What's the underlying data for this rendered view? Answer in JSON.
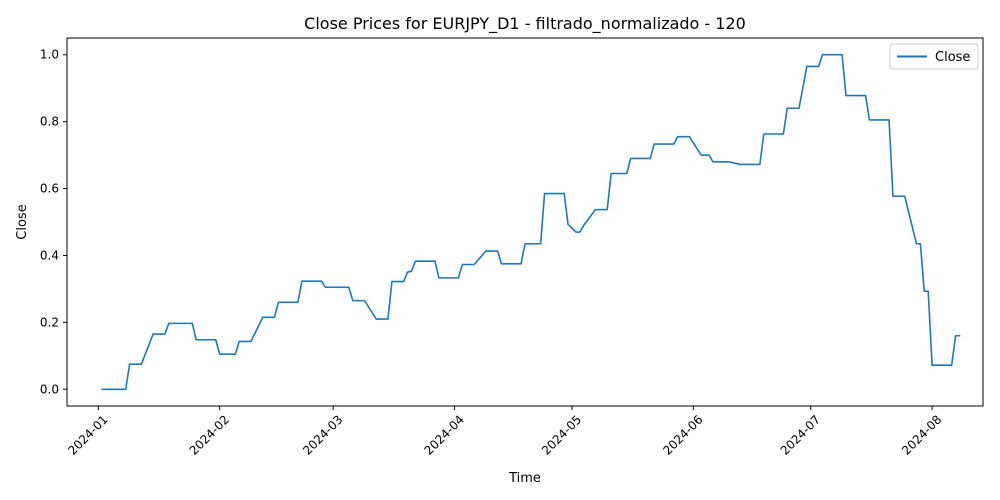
{
  "chart_data": {
    "type": "line",
    "title": "Close Prices for EURJPY_D1 - filtrado_normalizado - 120",
    "xlabel": "Time",
    "ylabel": "Close",
    "xlim": [
      "2023-12-24",
      "2024-08-14"
    ],
    "ylim": [
      -0.05,
      1.05
    ],
    "x_ticks": [
      "2024-01-01",
      "2024-02-01",
      "2024-03-01",
      "2024-04-01",
      "2024-05-01",
      "2024-06-01",
      "2024-07-01",
      "2024-08-01"
    ],
    "x_tick_labels": [
      "2024-01",
      "2024-02",
      "2024-03",
      "2024-04",
      "2024-05",
      "2024-06",
      "2024-07",
      "2024-08"
    ],
    "y_ticks": [
      0.0,
      0.2,
      0.4,
      0.6,
      0.8,
      1.0
    ],
    "y_tick_labels": [
      "0.0",
      "0.2",
      "0.4",
      "0.6",
      "0.8",
      "1.0"
    ],
    "grid": false,
    "legend": {
      "position": "top-right",
      "entries": [
        "Close"
      ]
    },
    "series": [
      {
        "name": "Close",
        "color": "#1f77b4",
        "x": [
          "2024-01-02",
          "2024-01-08",
          "2024-01-09",
          "2024-01-12",
          "2024-01-15",
          "2024-01-18",
          "2024-01-19",
          "2024-01-25",
          "2024-01-26",
          "2024-01-31",
          "2024-02-01",
          "2024-02-05",
          "2024-02-06",
          "2024-02-09",
          "2024-02-12",
          "2024-02-15",
          "2024-02-16",
          "2024-02-21",
          "2024-02-22",
          "2024-02-27",
          "2024-02-28",
          "2024-03-05",
          "2024-03-06",
          "2024-03-09",
          "2024-03-12",
          "2024-03-15",
          "2024-03-16",
          "2024-03-19",
          "2024-03-20",
          "2024-03-21",
          "2024-03-22",
          "2024-03-27",
          "2024-03-28",
          "2024-04-02",
          "2024-04-03",
          "2024-04-06",
          "2024-04-09",
          "2024-04-12",
          "2024-04-13",
          "2024-04-18",
          "2024-04-19",
          "2024-04-23",
          "2024-04-24",
          "2024-04-29",
          "2024-04-30",
          "2024-05-02",
          "2024-05-03",
          "2024-05-04",
          "2024-05-07",
          "2024-05-10",
          "2024-05-11",
          "2024-05-15",
          "2024-05-16",
          "2024-05-21",
          "2024-05-22",
          "2024-05-27",
          "2024-05-28",
          "2024-05-31",
          "2024-06-03",
          "2024-06-05",
          "2024-06-06",
          "2024-06-10",
          "2024-06-13",
          "2024-06-18",
          "2024-06-19",
          "2024-06-24",
          "2024-06-25",
          "2024-06-28",
          "2024-06-30",
          "2024-07-03",
          "2024-07-04",
          "2024-07-09",
          "2024-07-10",
          "2024-07-15",
          "2024-07-16",
          "2024-07-21",
          "2024-07-22",
          "2024-07-25",
          "2024-07-28",
          "2024-07-29",
          "2024-07-30",
          "2024-07-31",
          "2024-08-01",
          "2024-08-06",
          "2024-08-07",
          "2024-08-08"
        ],
        "y": [
          0.0,
          0.0,
          0.075,
          0.075,
          0.165,
          0.165,
          0.197,
          0.197,
          0.148,
          0.148,
          0.105,
          0.105,
          0.143,
          0.143,
          0.215,
          0.215,
          0.26,
          0.26,
          0.323,
          0.323,
          0.305,
          0.305,
          0.265,
          0.265,
          0.21,
          0.21,
          0.322,
          0.322,
          0.35,
          0.353,
          0.383,
          0.383,
          0.333,
          0.333,
          0.373,
          0.373,
          0.413,
          0.413,
          0.375,
          0.375,
          0.435,
          0.435,
          0.585,
          0.585,
          0.493,
          0.47,
          0.47,
          0.49,
          0.537,
          0.537,
          0.645,
          0.645,
          0.69,
          0.69,
          0.733,
          0.733,
          0.755,
          0.755,
          0.7,
          0.7,
          0.68,
          0.68,
          0.672,
          0.672,
          0.763,
          0.763,
          0.84,
          0.84,
          0.965,
          0.965,
          1.0,
          1.0,
          0.878,
          0.878,
          0.805,
          0.805,
          0.577,
          0.577,
          0.435,
          0.435,
          0.293,
          0.293,
          0.072,
          0.072,
          0.16,
          0.16
        ]
      }
    ]
  }
}
